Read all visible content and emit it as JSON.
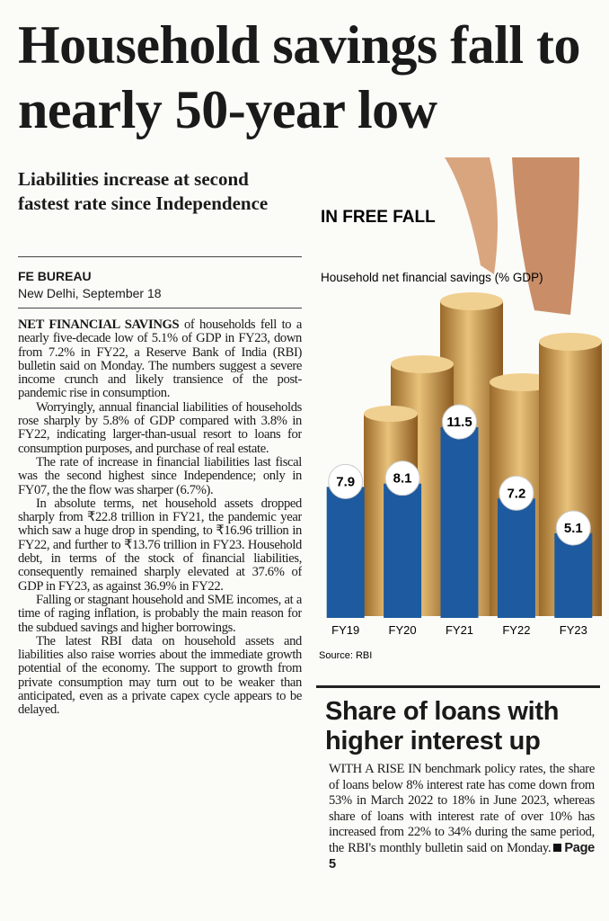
{
  "headline": "Household savings fall to nearly 50-year low",
  "subhead": "Liabilities increase at second fastest rate since Independence",
  "byline": {
    "agency": "FE BUREAU",
    "dateline": "New Delhi, September 18"
  },
  "article": {
    "lead": "NET FINANCIAL SAVINGS",
    "paragraphs": [
      "of households fell to a nearly five-decade low of 5.1% of GDP in FY23, down from 7.2% in FY22, a Reserve Bank of India (RBI) bulletin said on Monday. The numbers suggest a severe income crunch and likely transience of the post-pandemic rise in consumption.",
      "Worryingly, annual financial liabilities of households rose sharply by 5.8% of GDP compared with 3.8% in FY22, indicating larger-than-usual resort to loans for consumption purposes, and purchase of real estate.",
      "The rate of increase in financial liabilities last fiscal was the second highest since Independence; only in FY07, the the flow was sharper (6.7%).",
      "In absolute terms, net household assets dropped sharply from ₹22.8 trillion in FY21, the pandemic year which saw a huge drop in spending, to ₹16.96 trillion in FY22, and further to ₹13.76 trillion in FY23. Household debt, in terms of the stock of financial liabilities, consequently remained sharply elevated at 37.6% of GDP in FY23, as against 36.9% in FY22.",
      "Falling or stagnant household and SME incomes, at a time of raging inflation, is probably the main reason for the subdued savings and higher borrowings.",
      "The latest RBI data on household assets and liabilities also raise worries about the immediate growth potential of the economy. The support to growth from private consumption may turn out to be weaker than anticipated, even as a private capex cycle appears to be delayed."
    ]
  },
  "chart_data": {
    "type": "bar",
    "title": "IN FREE FALL",
    "subtitle": "Household net financial savings (% GDP)",
    "categories": [
      "FY19",
      "FY20",
      "FY21",
      "FY22",
      "FY23"
    ],
    "values": [
      7.9,
      8.1,
      11.5,
      7.2,
      5.1
    ],
    "color": "#1d5a9f",
    "source": "Source: RBI"
  },
  "sidebar": {
    "title": "Share of loans with higher interest up",
    "text": "WITH A RISE IN benchmark policy rates, the share of loans below 8% interest rate has come down from 53% in March 2022 to 18% in June 2023, whereas share of loans with interest rate of over 10% has increased from 22% to 34% during the same period, the RBI's monthly bulletin said on Monday.",
    "page_ref": "Page 5"
  }
}
